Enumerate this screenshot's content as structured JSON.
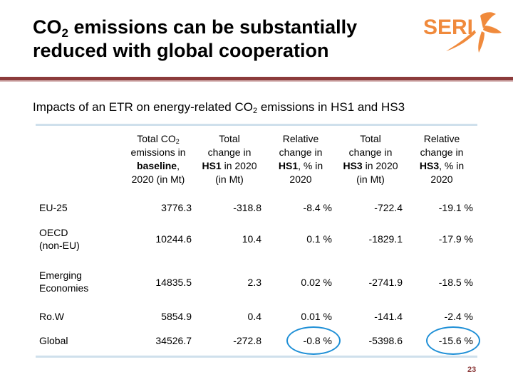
{
  "title": {
    "prefix": "CO",
    "sub": "2",
    "line1_rest": " emissions can be substantially",
    "line2": "reduced with global cooperation"
  },
  "logo": {
    "text": "SERI",
    "color": "#f08a3c"
  },
  "subtitle": {
    "prefix": "Impacts of an ETR on energy-related CO",
    "sub": "2",
    "suffix": " emissions in HS1 and HS3"
  },
  "columns": [
    {
      "l1_pre": "Total CO",
      "l1_sub": "2",
      "l2": "emissions in",
      "l3_bold": "baseline",
      "l3_rest": ",",
      "l4": "2020 (in Mt)"
    },
    {
      "l1": "Total",
      "l2": "change in",
      "l3_bold": "HS1",
      "l3_rest": " in 2020",
      "l4": "(in Mt)"
    },
    {
      "l1": "Relative",
      "l2": "change in",
      "l3_bold": "HS1",
      "l3_rest": ", % in",
      "l4": "2020"
    },
    {
      "l1": "Total",
      "l2": "change in",
      "l3_bold": "HS3",
      "l3_rest": " in 2020",
      "l4": "(in Mt)"
    },
    {
      "l1": "Relative",
      "l2": "change in",
      "l3_bold": "HS3",
      "l3_rest": ", % in",
      "l4": "2020"
    }
  ],
  "rows": [
    {
      "label": [
        "EU-25"
      ],
      "values": [
        "3776.3",
        "-318.8",
        "-8.4 %",
        "-722.4",
        "-19.1 %"
      ]
    },
    {
      "label": [
        "OECD",
        "(non-EU)"
      ],
      "values": [
        "10244.6",
        "10.4",
        "0.1 %",
        "-1829.1",
        "-17.9 %"
      ]
    },
    {
      "label": [
        "Emerging",
        "Economies"
      ],
      "values": [
        "14835.5",
        "2.3",
        "0.02 %",
        "-2741.9",
        "-18.5 %"
      ]
    },
    {
      "label": [
        "Ro.W"
      ],
      "values": [
        "5854.9",
        "0.4",
        "0.01 %",
        "-141.4",
        "-2.4 %"
      ]
    },
    {
      "label": [
        "Global"
      ],
      "values": [
        "34526.7",
        "-272.8",
        "-0.8 %",
        "-5398.6",
        "-15.6 %"
      ]
    }
  ],
  "highlight_color": "#1e8fd6",
  "page_number": "23"
}
